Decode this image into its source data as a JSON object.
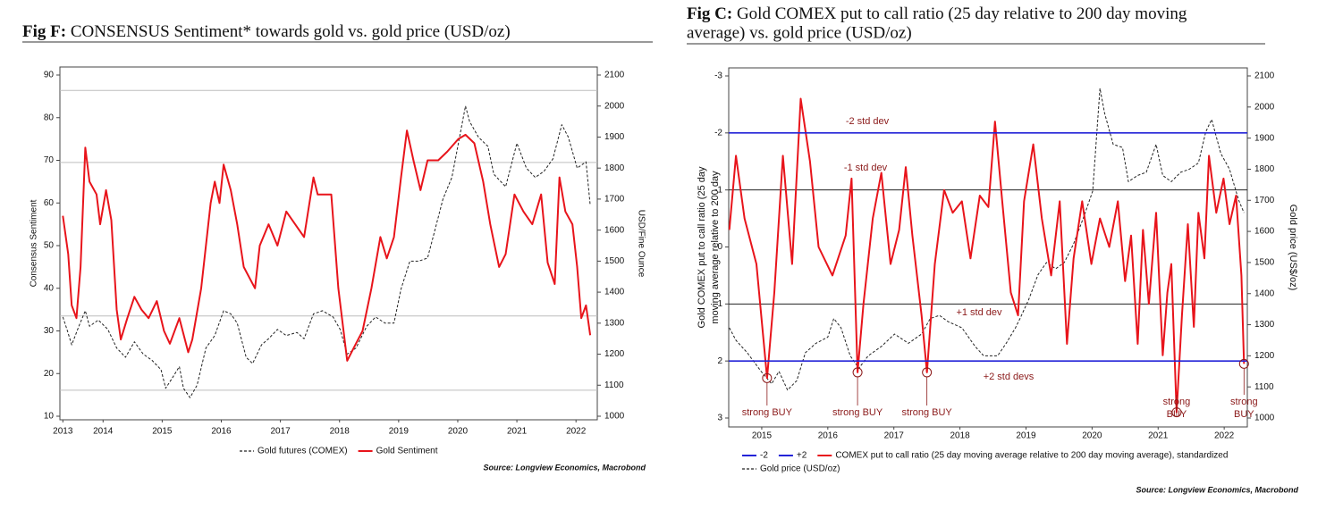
{
  "chart_data": [
    {
      "type": "line",
      "title": [
        "Fig F:",
        "CONSENSUS Sentiment* towards gold vs. gold price (USD/oz)"
      ],
      "ylabel": "Consensus Sentiment",
      "y2label": "USD/Fine Ounce",
      "source": "Source: Longview Economics, Macrobond",
      "xlim": [
        2013.77,
        2022.86
      ],
      "xticks": [
        {
          "value": 2013.82,
          "label": "2013"
        },
        {
          "value": 2014.5,
          "label": "2014"
        },
        {
          "value": 2015.5,
          "label": "2015"
        },
        {
          "value": 2016.5,
          "label": "2016"
        },
        {
          "value": 2017.5,
          "label": "2017"
        },
        {
          "value": 2018.5,
          "label": "2018"
        },
        {
          "value": 2019.5,
          "label": "2019"
        },
        {
          "value": 2020.5,
          "label": "2020"
        },
        {
          "value": 2021.5,
          "label": "2021"
        },
        {
          "value": 2022.5,
          "label": "2022"
        }
      ],
      "ylim": [
        10,
        90
      ],
      "yticks": [
        10,
        20,
        30,
        40,
        50,
        60,
        70,
        80,
        90
      ],
      "y2lim": [
        1000,
        2100
      ],
      "y2ticks": [
        1000,
        1100,
        1200,
        1300,
        1400,
        1500,
        1600,
        1700,
        1800,
        1900,
        2000,
        2100
      ],
      "hlines": [
        86.4,
        69.5,
        33.5,
        16.1
      ],
      "hline_color": "#bdbdbd",
      "legend": "bottom",
      "series": [
        {
          "name": "Gold futures (COMEX)",
          "color": "#222222",
          "style": "dashed",
          "axis": "y2",
          "x": [
            2013.82,
            2013.89,
            2013.97,
            2014.09,
            2014.2,
            2014.27,
            2014.42,
            2014.58,
            2014.73,
            2014.88,
            2015.03,
            2015.18,
            2015.33,
            2015.48,
            2015.56,
            2015.66,
            2015.79,
            2015.86,
            2015.97,
            2016.09,
            2016.24,
            2016.39,
            2016.54,
            2016.66,
            2016.77,
            2016.92,
            2017.03,
            2017.18,
            2017.3,
            2017.45,
            2017.6,
            2017.78,
            2017.9,
            2018.06,
            2018.21,
            2018.39,
            2018.51,
            2018.63,
            2018.78,
            2018.96,
            2019.11,
            2019.27,
            2019.42,
            2019.54,
            2019.69,
            2019.84,
            2019.99,
            2020.1,
            2020.25,
            2020.4,
            2020.63,
            2020.7,
            2020.85,
            2021.01,
            2021.11,
            2021.31,
            2021.5,
            2021.66,
            2021.81,
            2021.96,
            2022.11,
            2022.26,
            2022.37,
            2022.52,
            2022.67,
            2022.74
          ],
          "values": [
            1320,
            1280,
            1230,
            1290,
            1340,
            1290,
            1310,
            1280,
            1220,
            1190,
            1240,
            1200,
            1180,
            1150,
            1090,
            1120,
            1160,
            1090,
            1060,
            1100,
            1220,
            1260,
            1340,
            1330,
            1300,
            1190,
            1170,
            1230,
            1250,
            1280,
            1260,
            1270,
            1250,
            1330,
            1340,
            1320,
            1280,
            1200,
            1220,
            1290,
            1320,
            1300,
            1300,
            1410,
            1500,
            1500,
            1510,
            1590,
            1700,
            1770,
            2000,
            1950,
            1900,
            1870,
            1780,
            1740,
            1880,
            1800,
            1770,
            1790,
            1830,
            1940,
            1900,
            1800,
            1820,
            1680
          ]
        },
        {
          "name": "Gold Sentiment",
          "color": "#e8141b",
          "style": "solid",
          "axis": "y",
          "x": [
            2013.82,
            2013.91,
            2013.97,
            2014.05,
            2014.12,
            2014.2,
            2014.27,
            2014.39,
            2014.45,
            2014.55,
            2014.64,
            2014.73,
            2014.8,
            2014.91,
            2015.03,
            2015.15,
            2015.27,
            2015.41,
            2015.53,
            2015.63,
            2015.79,
            2015.94,
            2016.01,
            2016.16,
            2016.32,
            2016.39,
            2016.47,
            2016.54,
            2016.66,
            2016.77,
            2016.88,
            2017.07,
            2017.15,
            2017.3,
            2017.45,
            2017.6,
            2017.75,
            2017.9,
            2018.06,
            2018.13,
            2018.36,
            2018.48,
            2018.63,
            2018.74,
            2018.89,
            2019.04,
            2019.19,
            2019.3,
            2019.42,
            2019.54,
            2019.64,
            2019.75,
            2019.87,
            2019.99,
            2020.17,
            2020.32,
            2020.51,
            2020.63,
            2020.78,
            2020.93,
            2021.05,
            2021.2,
            2021.31,
            2021.46,
            2021.61,
            2021.76,
            2021.91,
            2022.02,
            2022.14,
            2022.22,
            2022.32,
            2022.44,
            2022.52,
            2022.59,
            2022.67,
            2022.74
          ],
          "values": [
            57,
            48,
            36,
            33,
            45,
            73,
            65,
            62,
            55,
            63,
            56,
            35,
            28,
            33,
            38,
            35,
            33,
            37,
            30,
            27,
            33,
            25,
            28,
            40,
            60,
            65,
            60,
            69,
            63,
            55,
            45,
            40,
            50,
            55,
            50,
            58,
            55,
            52,
            66,
            62,
            62,
            40,
            23,
            26,
            30,
            40,
            52,
            47,
            52,
            66,
            77,
            70,
            63,
            70,
            70,
            72,
            75,
            76,
            74,
            65,
            55,
            45,
            48,
            62,
            58,
            55,
            62,
            46,
            41,
            66,
            58,
            55,
            45,
            33,
            36,
            29
          ]
        }
      ]
    },
    {
      "type": "line",
      "title": [
        "Fig C:",
        "Gold COMEX put to call ratio (25 day relative to 200 day moving",
        "average) vs. gold price (USD/oz)"
      ],
      "ylabel": [
        "Gold COMEX put to call ratio (25 day",
        "moving average relative to 200 day"
      ],
      "y2label": "Gold price (US$/oz)",
      "source": "Source: Longview Economics, Macrobond",
      "xlim": [
        2015.0,
        2022.85
      ],
      "xticks": [
        {
          "value": 2015.5,
          "label": "2015"
        },
        {
          "value": 2016.5,
          "label": "2016"
        },
        {
          "value": 2017.5,
          "label": "2017"
        },
        {
          "value": 2018.5,
          "label": "2018"
        },
        {
          "value": 2019.5,
          "label": "2019"
        },
        {
          "value": 2020.5,
          "label": "2020"
        },
        {
          "value": 2021.5,
          "label": "2021"
        },
        {
          "value": 2022.5,
          "label": "2022"
        }
      ],
      "ylim": [
        3,
        -3
      ],
      "yticks": [
        -3,
        -2,
        -1,
        0,
        1,
        2,
        3
      ],
      "y2lim": [
        1000,
        2100
      ],
      "y2ticks": [
        1000,
        1100,
        1200,
        1300,
        1400,
        1500,
        1600,
        1700,
        1800,
        1900,
        2000,
        2100
      ],
      "hlines": [
        -1,
        1
      ],
      "hline_color": "#222222",
      "legend": "bottom",
      "annotation_color": "#8b1a1a",
      "annotations": [
        {
          "text": "-2 std dev"
        },
        {
          "text": "-1 std dev"
        },
        {
          "text": "+1 std dev"
        },
        {
          "text": "+2 std devs"
        },
        {
          "text": "strong BUY"
        },
        {
          "text": "strong BUY"
        },
        {
          "text": "strong BUY"
        },
        {
          "lines": [
            "strong",
            "BUY"
          ]
        },
        {
          "lines": [
            "strong",
            "BUY"
          ]
        }
      ],
      "buy_signals": {
        "x": [
          2015.58,
          2016.95,
          2018.0,
          2021.78,
          2022.8
        ],
        "y": [
          2.3,
          2.2,
          2.2,
          2.9,
          2.05
        ]
      },
      "series": [
        {
          "name": "Gold price (USD/oz)",
          "color": "#222222",
          "style": "dashed",
          "axis": "y2",
          "x": [
            2015.01,
            2015.11,
            2015.28,
            2015.49,
            2015.65,
            2015.76,
            2015.89,
            2016.03,
            2016.16,
            2016.32,
            2016.5,
            2016.59,
            2016.7,
            2016.84,
            2016.97,
            2017.11,
            2017.31,
            2017.51,
            2017.72,
            2017.92,
            2018.05,
            2018.19,
            2018.32,
            2018.53,
            2018.73,
            2018.86,
            2019.07,
            2019.2,
            2019.34,
            2019.41,
            2019.54,
            2019.68,
            2019.81,
            2019.95,
            2020.08,
            2020.22,
            2020.38,
            2020.51,
            2020.62,
            2020.69,
            2020.82,
            2020.96,
            2021.05,
            2021.19,
            2021.32,
            2021.47,
            2021.57,
            2021.7,
            2021.84,
            2021.97,
            2022.11,
            2022.22,
            2022.31,
            2022.45,
            2022.58,
            2022.72,
            2022.8
          ],
          "values": [
            1290,
            1250,
            1210,
            1150,
            1110,
            1150,
            1090,
            1120,
            1210,
            1240,
            1260,
            1320,
            1290,
            1200,
            1160,
            1200,
            1230,
            1270,
            1240,
            1270,
            1320,
            1330,
            1310,
            1290,
            1230,
            1200,
            1200,
            1240,
            1290,
            1320,
            1380,
            1460,
            1500,
            1480,
            1500,
            1560,
            1650,
            1730,
            2060,
            1980,
            1880,
            1870,
            1760,
            1780,
            1790,
            1880,
            1780,
            1760,
            1790,
            1800,
            1820,
            1920,
            1960,
            1850,
            1800,
            1700,
            1660
          ]
        },
        {
          "name": "COMEX put to call ratio (25 day moving average relative to 200 day moving average), standardized",
          "color": "#e8141b",
          "style": "solid",
          "axis": "y",
          "x": [
            2015.01,
            2015.11,
            2015.24,
            2015.42,
            2015.58,
            2015.69,
            2015.82,
            2015.96,
            2016.09,
            2016.23,
            2016.36,
            2016.57,
            2016.77,
            2016.86,
            2016.95,
            2017.04,
            2017.18,
            2017.31,
            2017.45,
            2017.58,
            2017.68,
            2017.78,
            2017.92,
            2018.0,
            2018.12,
            2018.26,
            2018.39,
            2018.53,
            2018.66,
            2018.8,
            2018.93,
            2019.03,
            2019.14,
            2019.27,
            2019.38,
            2019.47,
            2019.61,
            2019.74,
            2019.88,
            2020.01,
            2020.12,
            2020.22,
            2020.35,
            2020.49,
            2020.62,
            2020.76,
            2020.89,
            2021.0,
            2021.09,
            2021.19,
            2021.27,
            2021.36,
            2021.47,
            2021.57,
            2021.64,
            2021.7,
            2021.78,
            2021.86,
            2021.95,
            2022.04,
            2022.11,
            2022.2,
            2022.27,
            2022.38,
            2022.49,
            2022.58,
            2022.68,
            2022.76,
            2022.8
          ],
          "values": [
            -0.3,
            -1.6,
            -0.5,
            0.3,
            2.3,
            0.8,
            -1.6,
            0.3,
            -2.6,
            -1.5,
            0,
            0.5,
            -0.2,
            -1.2,
            2.2,
            1.0,
            -0.5,
            -1.3,
            0.3,
            -0.3,
            -1.4,
            -0.2,
            1.2,
            2.2,
            0.3,
            -1.0,
            -0.6,
            -0.8,
            0.2,
            -0.9,
            -0.7,
            -2.2,
            -0.8,
            0.8,
            1.2,
            -0.8,
            -1.8,
            -0.5,
            0.5,
            -0.8,
            1.7,
            0.2,
            -0.8,
            0.3,
            -0.5,
            0,
            -0.8,
            0.6,
            -0.2,
            1.7,
            -0.3,
            1.0,
            -0.6,
            1.9,
            0.8,
            0.3,
            2.9,
            1.2,
            -0.4,
            1.4,
            -0.6,
            0.2,
            -1.6,
            -0.6,
            -1.2,
            -0.4,
            -0.9,
            0.5,
            2.05
          ]
        },
        {
          "name": "-2",
          "color": "#2323d8",
          "style": "solid",
          "axis": "y",
          "x": [
            2015.0,
            2022.85
          ],
          "values": [
            -2,
            -2
          ]
        },
        {
          "name": "+2",
          "color": "#2323d8",
          "style": "solid",
          "axis": "y",
          "x": [
            2015.0,
            2022.85
          ],
          "values": [
            2,
            2
          ]
        }
      ]
    }
  ]
}
